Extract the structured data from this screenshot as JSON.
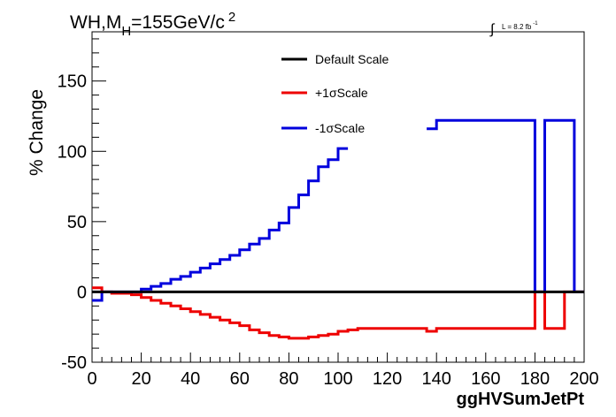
{
  "chart_data": {
    "type": "line",
    "title_main": "WH,M",
    "title_sub": "H",
    "title_rest": "=155GeV/c",
    "title_sup": "2",
    "lumi_integral": "∫",
    "lumi_text": "L = 8.2 fb",
    "lumi_sup": "-1",
    "ylabel": "% Change",
    "xlabel": "ggHVSumJetPt",
    "xlim": [
      0,
      200
    ],
    "ylim": [
      -50,
      185
    ],
    "x_ticks": [
      0,
      20,
      40,
      60,
      80,
      100,
      120,
      140,
      160,
      180,
      200
    ],
    "x_tick_labels": [
      "0",
      "20",
      "40",
      "60",
      "80",
      "100",
      "120",
      "140",
      "160",
      "180",
      "200"
    ],
    "y_ticks": [
      -50,
      0,
      50,
      100,
      150
    ],
    "y_tick_labels": [
      "-50",
      "0",
      "50",
      "100",
      "150"
    ],
    "bin_edges": [
      0,
      4,
      8,
      12,
      16,
      20,
      24,
      28,
      32,
      36,
      40,
      44,
      48,
      52,
      56,
      60,
      64,
      68,
      72,
      76,
      80,
      84,
      88,
      92,
      96,
      100,
      104,
      108,
      112,
      116,
      120,
      124,
      128,
      132,
      136,
      140,
      144,
      148,
      152,
      156,
      160,
      164,
      168,
      172,
      176,
      180,
      184,
      188,
      192,
      196,
      200
    ],
    "legend": [
      {
        "label": "Default Scale",
        "color": "#000000"
      },
      {
        "label": "+1σScale",
        "color": "#ee0000"
      },
      {
        "label": "-1σScale",
        "color": "#0000dd"
      }
    ],
    "series": [
      {
        "name": "Default Scale",
        "color": "#000000",
        "values": [
          0,
          0,
          0,
          0,
          0,
          0,
          0,
          0,
          0,
          0,
          0,
          0,
          0,
          0,
          0,
          0,
          0,
          0,
          0,
          0,
          0,
          0,
          0,
          0,
          0,
          0,
          0,
          0,
          0,
          0,
          0,
          0,
          0,
          0,
          0,
          0,
          0,
          0,
          0,
          0,
          0,
          0,
          0,
          0,
          0,
          0,
          0,
          0,
          0,
          0
        ]
      },
      {
        "name": "+1σScale",
        "color": "#ee0000",
        "values": [
          3,
          0,
          -1,
          -1,
          -2,
          -4,
          -6,
          -8,
          -10,
          -12,
          -14,
          -16,
          -18,
          -20,
          -22,
          -24,
          -27,
          -29,
          -31,
          -32,
          -33,
          -33,
          -32,
          -31,
          -30,
          -28,
          -27,
          -26,
          -26,
          -26,
          -26,
          -26,
          -26,
          -26,
          -28,
          -26,
          -26,
          -26,
          -26,
          -26,
          -26,
          -26,
          -26,
          -26,
          -26,
          0,
          -26,
          -26,
          0,
          0
        ]
      },
      {
        "name": "-1σScale",
        "color": "#0000dd",
        "values": [
          -6,
          0,
          0,
          0,
          0,
          2,
          4,
          6,
          9,
          11,
          14,
          17,
          20,
          23,
          26,
          30,
          34,
          38,
          44,
          49,
          60,
          69,
          79,
          89,
          94,
          102,
          null,
          null,
          null,
          null,
          null,
          null,
          null,
          null,
          116,
          122,
          122,
          122,
          122,
          122,
          122,
          122,
          122,
          122,
          122,
          0,
          122,
          122,
          122,
          0
        ]
      }
    ]
  }
}
